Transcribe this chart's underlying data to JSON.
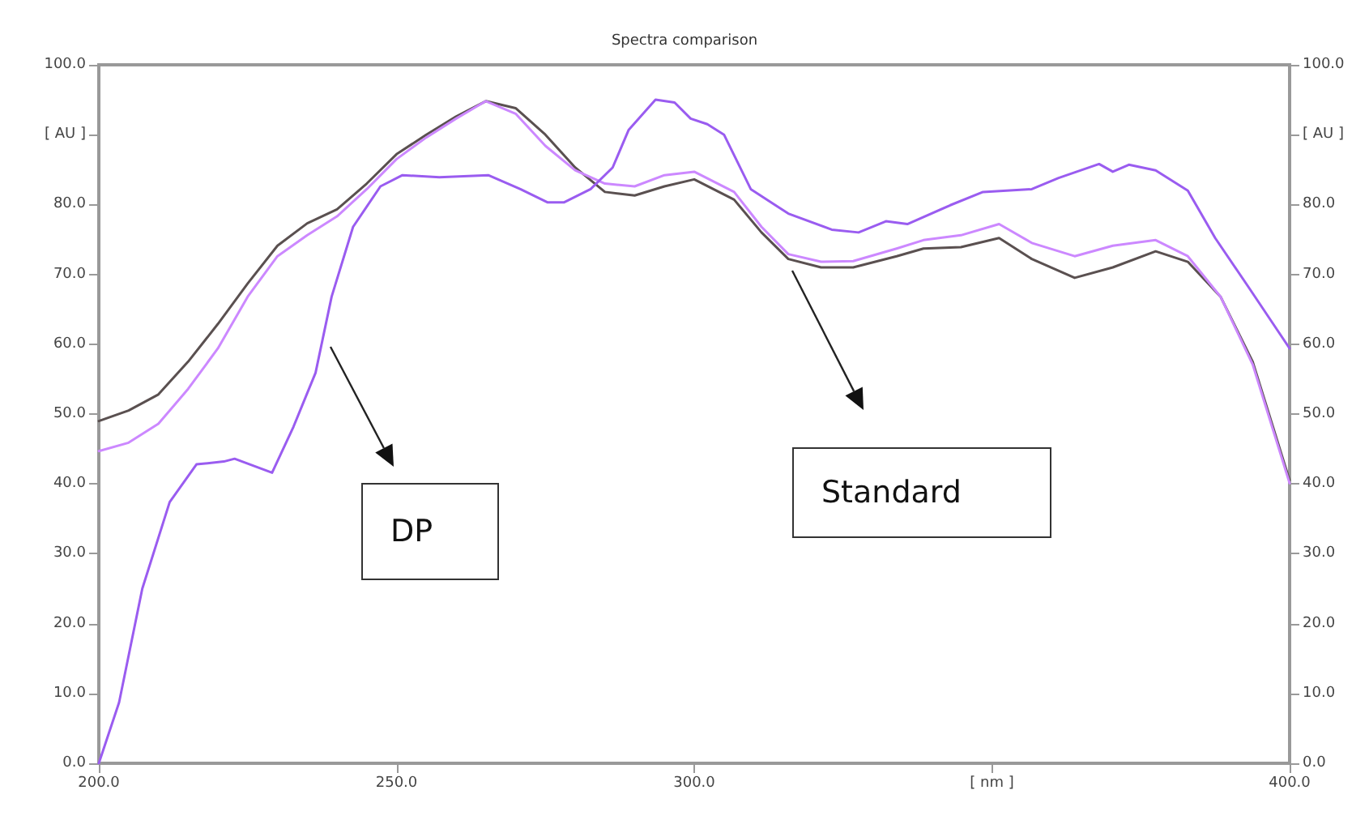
{
  "chart_data": {
    "type": "line",
    "title": "Spectra comparison",
    "xlim": [
      200,
      400
    ],
    "xticks": [
      {
        "value": 200,
        "label": "200.0"
      },
      {
        "value": 250,
        "label": "250.0"
      },
      {
        "value": 300,
        "label": "300.0"
      },
      {
        "value": 350,
        "label": "[ nm ]"
      },
      {
        "value": 400,
        "label": "400.0"
      }
    ],
    "ylim": [
      0,
      100
    ],
    "yticks": [
      {
        "value": 0,
        "label": "0.0"
      },
      {
        "value": 10,
        "label": "10.0"
      },
      {
        "value": 20,
        "label": "20.0"
      },
      {
        "value": 30,
        "label": "30.0"
      },
      {
        "value": 40,
        "label": "40.0"
      },
      {
        "value": 50,
        "label": "50.0"
      },
      {
        "value": 60,
        "label": "60.0"
      },
      {
        "value": 70,
        "label": "70.0"
      },
      {
        "value": 80,
        "label": "80.0"
      },
      {
        "value": 90,
        "label": "[ AU ]"
      },
      {
        "value": 100,
        "label": "100.0"
      }
    ],
    "y2lim": [
      0,
      100
    ],
    "y2ticks": [
      {
        "value": 0,
        "label": "0.0"
      },
      {
        "value": 10,
        "label": "10.0"
      },
      {
        "value": 20,
        "label": "20.0"
      },
      {
        "value": 30,
        "label": "30.0"
      },
      {
        "value": 40,
        "label": "40.0"
      },
      {
        "value": 50,
        "label": "50.0"
      },
      {
        "value": 60,
        "label": "60.0"
      },
      {
        "value": 70,
        "label": "70.0"
      },
      {
        "value": 80,
        "label": "80.0"
      },
      {
        "value": 90,
        "label": "[ AU ]"
      },
      {
        "value": 100,
        "label": "100.0"
      }
    ],
    "grid": false,
    "marker": "none",
    "line_style": "solid",
    "series": [
      {
        "color": "#5a5050",
        "x": [
          200,
          205,
          210,
          215,
          220,
          225,
          230,
          235,
          240,
          245,
          250,
          255,
          260,
          265,
          270,
          275,
          280,
          285,
          290,
          295,
          300,
          306.7,
          311.3,
          315.8,
          321.3,
          326.7,
          334,
          338.5,
          344.8,
          351.2,
          356.7,
          363.9,
          370.3,
          377.5,
          382.9,
          388.4,
          393.8,
          400
        ],
        "values": [
          49.0,
          50.5,
          52.8,
          57.5,
          62.9,
          68.7,
          74.1,
          77.3,
          79.3,
          83.0,
          87.2,
          90.0,
          92.6,
          94.8,
          93.8,
          90.0,
          85.3,
          81.8,
          81.3,
          82.6,
          83.6,
          80.7,
          76.0,
          72.2,
          71.0,
          71.0,
          72.6,
          73.7,
          73.9,
          75.2,
          72.2,
          69.5,
          71.0,
          73.3,
          71.8,
          66.8,
          57.5,
          40.5
        ]
      },
      {
        "color": "#cc88ff",
        "x": [
          200,
          205,
          210,
          215,
          220,
          225,
          230,
          235,
          240,
          245,
          250,
          255,
          260,
          265,
          270,
          275,
          280,
          285,
          290,
          295,
          300,
          306.7,
          311.3,
          315.8,
          321.3,
          326.7,
          334,
          338.5,
          344.8,
          351.2,
          356.7,
          363.9,
          370.3,
          377.5,
          382.9,
          388.4,
          393.8,
          400
        ],
        "values": [
          44.7,
          45.9,
          48.6,
          53.6,
          59.4,
          66.8,
          72.6,
          75.6,
          78.3,
          82.2,
          86.5,
          89.6,
          92.3,
          94.8,
          93.0,
          88.4,
          84.9,
          83.0,
          82.6,
          84.2,
          84.7,
          81.8,
          76.8,
          72.9,
          71.8,
          71.9,
          73.7,
          74.9,
          75.6,
          77.2,
          74.5,
          72.6,
          74.1,
          74.9,
          72.6,
          66.8,
          57.1,
          40.1
        ]
      },
      {
        "color": "#9a5cf0",
        "x": [
          200,
          203.4,
          207.3,
          211.9,
          216.4,
          221,
          222.8,
          229.1,
          232.7,
          236.4,
          239.1,
          242.7,
          247.3,
          251,
          257.2,
          265.4,
          270.8,
          275.4,
          278.1,
          282.6,
          286.3,
          289,
          293.5,
          296.7,
          299.4,
          302.2,
          305,
          309.5,
          315.8,
          323.1,
          327.6,
          332.2,
          335.8,
          343,
          348.5,
          356.7,
          361.2,
          368,
          370.3,
          373,
          377.5,
          382.9,
          387.5,
          393,
          400
        ],
        "values": [
          0.0,
          8.7,
          25.0,
          37.4,
          42.8,
          43.2,
          43.6,
          41.6,
          48.2,
          55.9,
          66.8,
          76.8,
          82.6,
          84.2,
          83.9,
          84.2,
          82.2,
          80.3,
          80.3,
          82.2,
          85.3,
          90.7,
          95.0,
          94.6,
          92.3,
          91.5,
          90.0,
          82.2,
          78.7,
          76.4,
          76.0,
          77.6,
          77.2,
          79.9,
          81.8,
          82.2,
          83.8,
          85.8,
          84.7,
          85.7,
          84.9,
          82.0,
          75.2,
          68.3,
          59.4
        ]
      }
    ],
    "annotations": [
      "DP",
      "Standard"
    ]
  }
}
